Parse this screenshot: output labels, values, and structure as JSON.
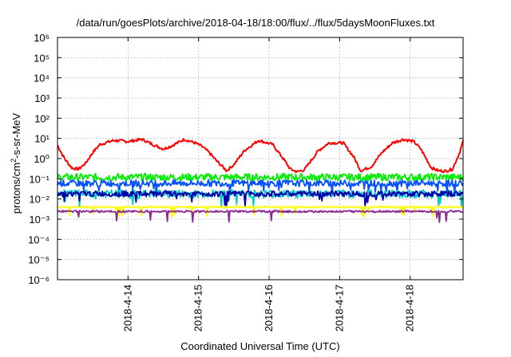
{
  "chart_data": {
    "type": "line",
    "title": "/data/run/goesPlots/archive/2018-04-18/18:00/flux/../flux/5daysMoonFluxes.txt",
    "xlabel": "Coordinated Universal Time (UTC)",
    "ylabel": "protons/cm²-s-sr-MeV",
    "yscale": "log",
    "ylim": [
      1e-06,
      1000000.0
    ],
    "yticks": [
      "10⁻⁶",
      "10⁻⁵",
      "10⁻⁴",
      "10⁻³",
      "10⁻²",
      "10⁻¹",
      "10⁰",
      "10¹",
      "10²",
      "10³",
      "10⁴",
      "10⁵",
      "10⁶"
    ],
    "xlim": [
      "2018-04-13 00:00",
      "2018-04-18 18:00"
    ],
    "xticks": [
      "2018-4-14",
      "2018-4-15",
      "2018-4-16",
      "2018-4-17",
      "2018-4-18"
    ],
    "xtick_days": [
      1,
      2,
      3,
      4,
      5
    ],
    "grid": true,
    "legend": "none",
    "series": [
      {
        "color": "#ff0000",
        "base": [
          [
            0.0,
            4.5
          ],
          [
            0.1,
            1.0
          ],
          [
            0.2,
            0.35
          ],
          [
            0.3,
            0.3
          ],
          [
            0.4,
            0.6
          ],
          [
            0.5,
            2.0
          ],
          [
            0.6,
            5.0
          ],
          [
            0.8,
            8.0
          ],
          [
            1.0,
            7.0
          ],
          [
            1.2,
            9.0
          ],
          [
            1.35,
            5.0
          ],
          [
            1.5,
            3.0
          ],
          [
            1.6,
            4.0
          ],
          [
            1.8,
            9.0
          ],
          [
            1.95,
            6.0
          ],
          [
            2.05,
            4.0
          ],
          [
            2.15,
            2.0
          ],
          [
            2.25,
            0.8
          ],
          [
            2.4,
            0.25
          ],
          [
            2.5,
            0.5
          ],
          [
            2.65,
            2.5
          ],
          [
            2.85,
            8.0
          ],
          [
            3.05,
            5.0
          ],
          [
            3.2,
            1.0
          ],
          [
            3.3,
            0.3
          ],
          [
            3.4,
            0.22
          ],
          [
            3.5,
            0.28
          ],
          [
            3.7,
            2.5
          ],
          [
            3.85,
            6.0
          ],
          [
            4.05,
            6.0
          ],
          [
            4.2,
            1.2
          ],
          [
            4.3,
            0.25
          ],
          [
            4.45,
            0.4
          ],
          [
            4.6,
            2.0
          ],
          [
            4.75,
            6.0
          ],
          [
            4.9,
            9.0
          ],
          [
            5.05,
            7.0
          ],
          [
            5.15,
            3.0
          ],
          [
            5.3,
            0.35
          ],
          [
            5.4,
            0.25
          ],
          [
            5.5,
            0.24
          ],
          [
            5.6,
            0.3
          ],
          [
            5.7,
            2.0
          ],
          [
            5.75,
            7.0
          ]
        ]
      },
      {
        "color": "#00ee00",
        "base": [
          [
            0,
            0.12
          ],
          [
            5.75,
            0.12
          ]
        ]
      },
      {
        "color": "#0050ff",
        "base": [
          [
            0,
            0.06
          ],
          [
            5.75,
            0.06
          ]
        ]
      },
      {
        "color": "#00cccc",
        "base": [
          [
            0,
            0.018
          ],
          [
            5.75,
            0.018
          ]
        ]
      },
      {
        "color": "#0000aa",
        "base": [
          [
            0,
            0.018
          ],
          [
            5.75,
            0.018
          ]
        ]
      },
      {
        "color": "#ffff00",
        "base": [
          [
            0,
            0.004
          ],
          [
            5.75,
            0.004
          ]
        ]
      },
      {
        "color": "#8b2a8b",
        "base": [
          [
            0,
            0.0024
          ],
          [
            5.75,
            0.0024
          ]
        ]
      }
    ]
  }
}
